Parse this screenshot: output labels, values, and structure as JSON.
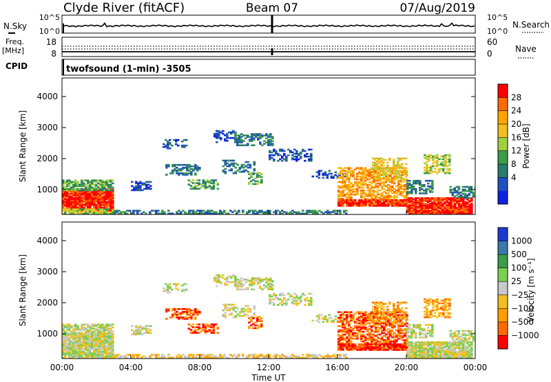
{
  "header": {
    "station": "Clyde River (fitACF)",
    "beam": "Beam 07",
    "date": "07/Aug/2019"
  },
  "nsky_panel": {
    "left_label": "N.Sky",
    "left_ticks": [
      "10^5",
      "10^0"
    ],
    "right_ticks": [
      "10^5",
      "10^0"
    ],
    "right_label": "N.Search"
  },
  "freq_panel": {
    "left_label_1": "Freq.",
    "left_label_2": "[MHz]",
    "left_ticks": [
      "18",
      "8"
    ],
    "right_ticks": [
      "60",
      "0"
    ],
    "right_label": "Nave"
  },
  "cpid": {
    "label": "CPID",
    "program": "twofsound (1-min) -3505"
  },
  "chart_data": [
    {
      "type": "heatmap",
      "name": "power",
      "ylabel": "Slant Range [km]",
      "ylim": [
        200,
        4600
      ],
      "yticks": [
        "1000",
        "2000",
        "3000",
        "4000"
      ],
      "xlabel": "Time UT",
      "xticks": [
        "00:00",
        "04:00",
        "08:00",
        "12:00",
        "16:00",
        "20:00",
        "00:00"
      ],
      "colorbar_label": "Power [dB]",
      "colorbar_ticks": [
        "28",
        "24",
        "20",
        "16",
        "12",
        "8",
        "4"
      ],
      "colorbar_colors": [
        "#ff0000",
        "#ff6a00",
        "#ffa500",
        "#f0c020",
        "#a0d040",
        "#3c9c4a",
        "#2c7a6a",
        "#2050c0",
        "#1020e0"
      ]
    },
    {
      "type": "heatmap",
      "name": "velocity",
      "ylabel": "Slant Range [km]",
      "ylim": [
        200,
        4600
      ],
      "yticks": [
        "1000",
        "2000",
        "3000",
        "4000"
      ],
      "xlabel": "Time UT",
      "xticks": [
        "00:00",
        "04:00",
        "08:00",
        "12:00",
        "16:00",
        "20:00",
        "00:00"
      ],
      "colorbar_label": "Velocity [m s⁻¹]",
      "colorbar_ticks": [
        "1000",
        "500",
        "100",
        "25",
        "−25",
        "−100",
        "−500",
        "−1000"
      ],
      "colorbar_colors": [
        "#1c3cd0",
        "#3c78a8",
        "#3c9c4a",
        "#7ad050",
        "#c8c8c8",
        "#f0c020",
        "#ffa000",
        "#ff6a00",
        "#ff0000"
      ]
    }
  ]
}
